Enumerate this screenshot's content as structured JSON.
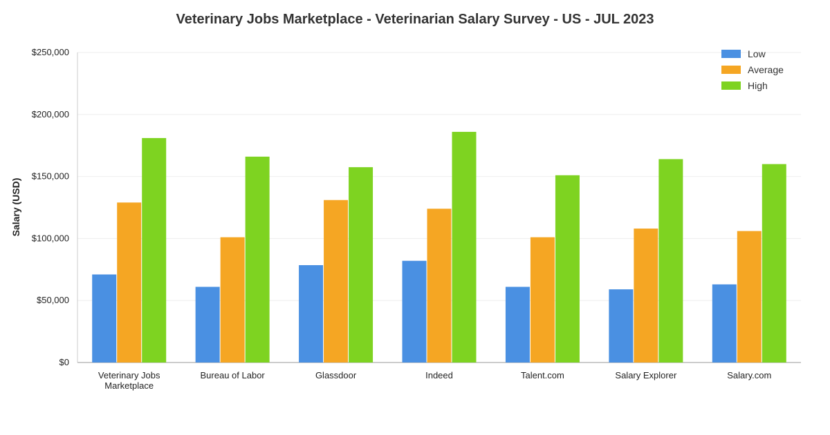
{
  "chart_data": {
    "type": "bar",
    "title": "Veterinary Jobs Marketplace - Veterinarian Salary Survey - US - JUL 2023",
    "xlabel": "",
    "ylabel": "Salary (USD)",
    "ylim": [
      0,
      250000
    ],
    "yticks": [
      0,
      50000,
      100000,
      150000,
      200000,
      250000
    ],
    "ytick_labels": [
      "$0",
      "$50,000",
      "$100,000",
      "$150,000",
      "$200,000",
      "$250,000"
    ],
    "grid": true,
    "legend_position": "top-right",
    "categories": [
      [
        "Veterinary Jobs",
        "Marketplace"
      ],
      [
        "Bureau of Labor"
      ],
      [
        "Glassdoor"
      ],
      [
        "Indeed"
      ],
      [
        "Talent.com"
      ],
      [
        "Salary Explorer"
      ],
      [
        "Salary.com"
      ]
    ],
    "series": [
      {
        "name": "Low",
        "color": "#4a90e2",
        "values": [
          71000,
          61000,
          78500,
          82000,
          61000,
          59000,
          63000
        ]
      },
      {
        "name": "Average",
        "color": "#f5a623",
        "values": [
          129000,
          101000,
          131000,
          124000,
          101000,
          108000,
          106000
        ]
      },
      {
        "name": "High",
        "color": "#7ed321",
        "values": [
          181000,
          166000,
          157500,
          186000,
          151000,
          164000,
          160000
        ]
      }
    ]
  }
}
